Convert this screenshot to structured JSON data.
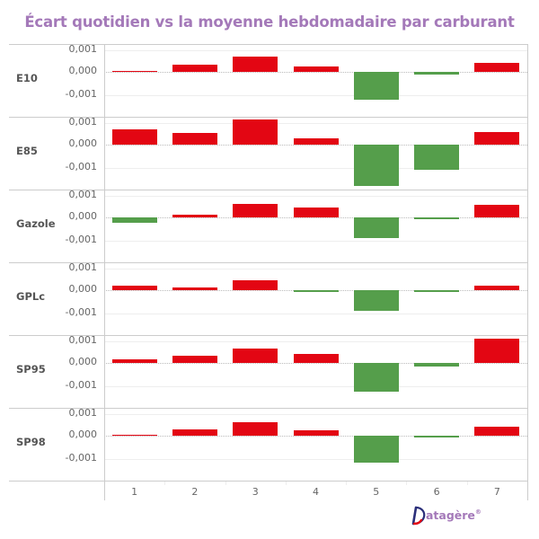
{
  "title": "Écart quotidien vs la moyenne hebdomadaire par carburant",
  "colors": {
    "positive": "#e30613",
    "negative": "#559e4b",
    "title": "#a479b9",
    "grid": "#eeeeee",
    "border": "#cccccc"
  },
  "y_ticks": [
    "0,001",
    "0,000",
    "-0,001"
  ],
  "x_categories": [
    "1",
    "2",
    "3",
    "4",
    "5",
    "6",
    "7"
  ],
  "panels": [
    {
      "label": "E10"
    },
    {
      "label": "E85"
    },
    {
      "label": "Gazole"
    },
    {
      "label": "GPLc"
    },
    {
      "label": "SP95"
    },
    {
      "label": "SP98"
    }
  ],
  "logo": {
    "letter": "D",
    "text": "atagère",
    "reg": "®"
  },
  "chart_data": {
    "type": "bar",
    "title": "Écart quotidien vs la moyenne hebdomadaire par carburant",
    "layout": "small multiples (6 rows, shared x-axis)",
    "xlabel": "",
    "ylabel": "",
    "categories": [
      "1",
      "2",
      "3",
      "4",
      "5",
      "6",
      "7"
    ],
    "y_tick_labels": [
      "0,001",
      "0,000",
      "-0,001"
    ],
    "ylim": [
      -0.0019,
      0.0012
    ],
    "grid": true,
    "legend": null,
    "color_rule": "red if >= 0, green if < 0",
    "series": [
      {
        "name": "E10",
        "values": [
          2e-05,
          0.0003,
          0.00068,
          0.00024,
          -0.00122,
          -0.0001,
          0.0004
        ]
      },
      {
        "name": "E85",
        "values": [
          0.00068,
          0.00052,
          0.00108,
          0.00028,
          -0.0018,
          -0.0011,
          0.00056
        ]
      },
      {
        "name": "Gazole",
        "values": [
          -0.00022,
          0.00012,
          0.0006,
          0.00044,
          -0.0009,
          -8e-05,
          0.00056
        ]
      },
      {
        "name": "GPLc",
        "values": [
          0.0002,
          0.00012,
          0.00044,
          -2e-05,
          -0.0009,
          -2e-05,
          0.0002
        ]
      },
      {
        "name": "SP95",
        "values": [
          0.00016,
          0.00032,
          0.00064,
          0.0004,
          -0.00126,
          -0.00016,
          0.00106
        ]
      },
      {
        "name": "SP98",
        "values": [
          2e-05,
          0.00028,
          0.0006,
          0.00024,
          -0.00116,
          -2e-05,
          0.0004
        ]
      }
    ]
  }
}
